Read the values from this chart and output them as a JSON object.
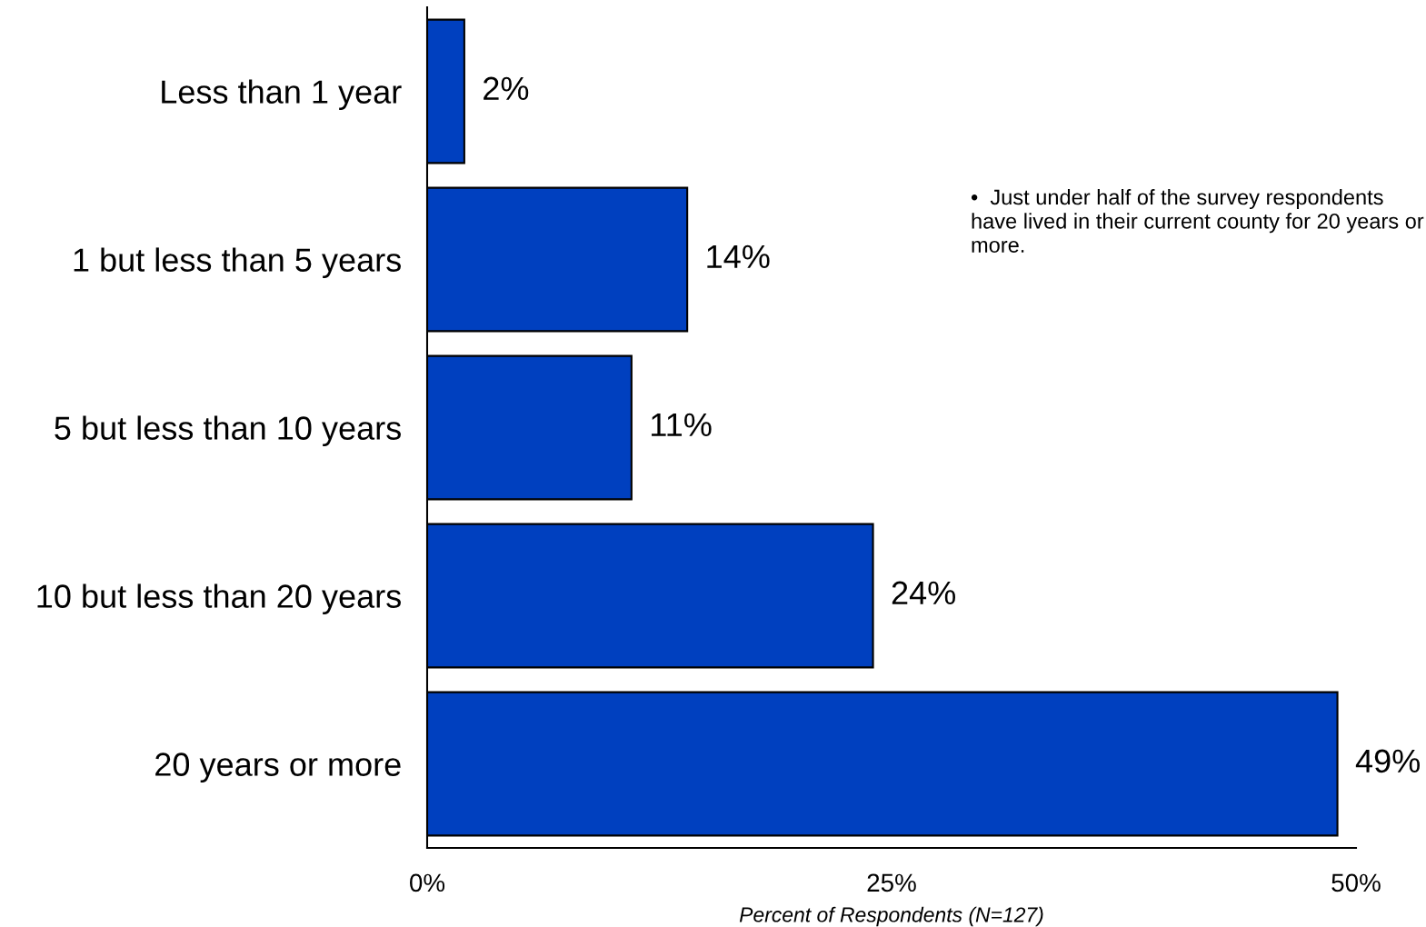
{
  "chart_data": {
    "type": "bar",
    "orientation": "horizontal",
    "categories": [
      "Less than 1 year",
      "1 but less than 5 years",
      "5 but less than 10 years",
      "10 but less than 20 years",
      "20 years or more"
    ],
    "values": [
      2,
      14,
      11,
      24,
      49
    ],
    "color": "#0040bf",
    "value_labels": [
      "2%",
      "14%",
      "11%",
      "24%",
      "49%"
    ],
    "xlim": [
      0,
      50
    ],
    "xticks": [
      {
        "value": 0,
        "label": "0%"
      },
      {
        "value": 25,
        "label": "25%"
      },
      {
        "value": 50,
        "label": "50%"
      }
    ],
    "xlabel": "Percent of Respondents (N=127)",
    "annotations": [
      "•  Just under half of the survey respondents have lived in their current county for 20 years or more."
    ],
    "grid": false,
    "legend": false
  }
}
